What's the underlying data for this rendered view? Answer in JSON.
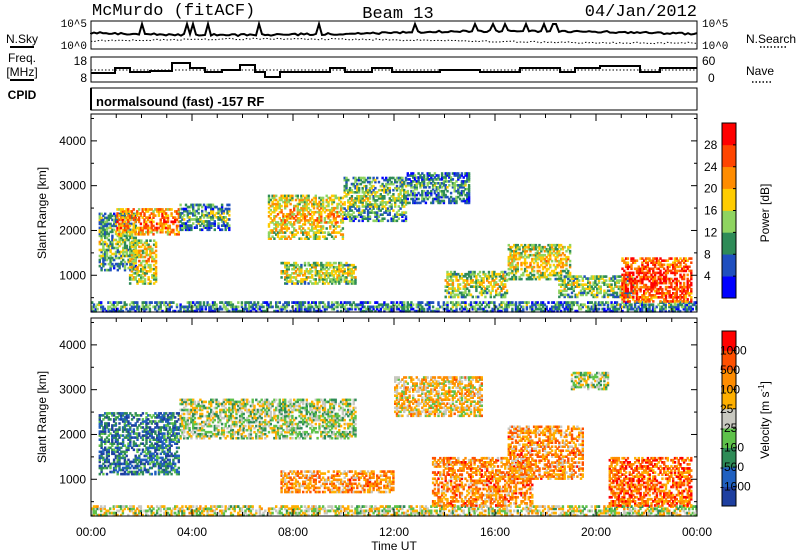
{
  "header": {
    "station": "McMurdo (fitACF)",
    "beam": "Beam 13",
    "date": "04/Jan/2012",
    "mode": "normalsound (fast) -157 RF"
  },
  "side_labels": {
    "nsky": "N.Sky",
    "nsearch": "N.Search",
    "freq_line1": "Freq.",
    "freq_line2": "[MHz]",
    "nave": "Nave",
    "cpid": "CPID"
  },
  "strip_ticks": {
    "noise_left_top": "10^5",
    "noise_left_bottom": "10^0",
    "noise_right_top": "10^5",
    "noise_right_bottom": "10^0",
    "freq_top": "18",
    "freq_bottom": "8",
    "nave_top": "60",
    "nave_bottom": "0"
  },
  "chart_data": [
    {
      "type": "heatmap",
      "quantity": "power",
      "ylabel": "Slant Range [km]",
      "ylim": [
        180,
        4600
      ],
      "yticks": [
        "1000",
        "2000",
        "3000",
        "4000"
      ],
      "xlim_hours": [
        0,
        24
      ],
      "colorbar": {
        "label": "Power [dB]",
        "ticks": [
          "4",
          "8",
          "12",
          "16",
          "20",
          "24",
          "28"
        ],
        "colors": [
          "#0000ff",
          "#1f4fbf",
          "#2e8b57",
          "#8fd460",
          "#ffcc00",
          "#ff8c00",
          "#ff4500",
          "#ff0000"
        ]
      },
      "echo_regions": [
        {
          "t0": 0.0,
          "t1": 24.0,
          "r0": 180,
          "r1": 420,
          "level": 0.35
        },
        {
          "t0": 0.3,
          "t1": 1.8,
          "r0": 1100,
          "r1": 2400,
          "level": 0.45
        },
        {
          "t0": 1.0,
          "t1": 3.5,
          "r0": 1900,
          "r1": 2500,
          "level": 0.8
        },
        {
          "t0": 1.5,
          "t1": 2.6,
          "r0": 800,
          "r1": 1800,
          "level": 0.6
        },
        {
          "t0": 3.5,
          "t1": 5.5,
          "r0": 2000,
          "r1": 2600,
          "level": 0.4
        },
        {
          "t0": 7.0,
          "t1": 10.0,
          "r0": 1800,
          "r1": 2800,
          "level": 0.65
        },
        {
          "t0": 7.5,
          "t1": 10.5,
          "r0": 800,
          "r1": 1300,
          "level": 0.55
        },
        {
          "t0": 10.0,
          "t1": 12.5,
          "r0": 2200,
          "r1": 3200,
          "level": 0.45
        },
        {
          "t0": 12.5,
          "t1": 15.0,
          "r0": 2600,
          "r1": 3300,
          "level": 0.35
        },
        {
          "t0": 14.0,
          "t1": 16.5,
          "r0": 500,
          "r1": 1100,
          "level": 0.55
        },
        {
          "t0": 16.5,
          "t1": 19.0,
          "r0": 900,
          "r1": 1700,
          "level": 0.6
        },
        {
          "t0": 18.5,
          "t1": 21.5,
          "r0": 500,
          "r1": 1000,
          "level": 0.5
        },
        {
          "t0": 21.0,
          "t1": 23.8,
          "r0": 400,
          "r1": 1400,
          "level": 0.9
        }
      ]
    },
    {
      "type": "heatmap",
      "quantity": "velocity",
      "ylabel": "Slant Range [km]",
      "xlabel": "Time UT",
      "ylim": [
        180,
        4600
      ],
      "yticks": [
        "1000",
        "2000",
        "3000",
        "4000"
      ],
      "xlim_hours": [
        0,
        24
      ],
      "xticks": [
        "00:00",
        "04:00",
        "08:00",
        "12:00",
        "16:00",
        "20:00",
        "00:00"
      ],
      "colorbar": {
        "label_main": "Velocity [m s",
        "label_exp": "-1",
        "label_end": "]",
        "ticks": [
          "1000",
          "500",
          "100",
          "25",
          "-25",
          "-100",
          "-500",
          "-1000"
        ],
        "colors": [
          "#1e3fa0",
          "#2060c0",
          "#2e8b57",
          "#5ec24a",
          "#c8c8c0",
          "#ffb000",
          "#ff8c00",
          "#ff5000",
          "#ff0000"
        ]
      },
      "echo_regions": [
        {
          "t0": 0.0,
          "t1": 24.0,
          "r0": 180,
          "r1": 420,
          "level": 0.5
        },
        {
          "t0": 0.3,
          "t1": 3.5,
          "r0": 1100,
          "r1": 2500,
          "level": 0.2
        },
        {
          "t0": 3.5,
          "t1": 10.5,
          "r0": 1900,
          "r1": 2800,
          "level": 0.45
        },
        {
          "t0": 7.5,
          "t1": 12.0,
          "r0": 700,
          "r1": 1200,
          "level": 0.7
        },
        {
          "t0": 12.0,
          "t1": 15.5,
          "r0": 2400,
          "r1": 3300,
          "level": 0.6
        },
        {
          "t0": 13.5,
          "t1": 17.5,
          "r0": 400,
          "r1": 1500,
          "level": 0.72
        },
        {
          "t0": 16.5,
          "t1": 19.5,
          "r0": 1000,
          "r1": 2200,
          "level": 0.7
        },
        {
          "t0": 19.0,
          "t1": 20.5,
          "r0": 3000,
          "r1": 3400,
          "level": 0.45
        },
        {
          "t0": 20.5,
          "t1": 23.8,
          "r0": 400,
          "r1": 1500,
          "level": 0.78
        }
      ]
    }
  ]
}
